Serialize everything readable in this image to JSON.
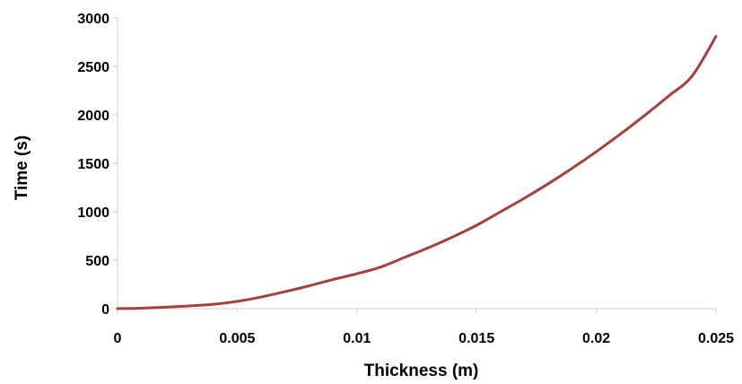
{
  "chart_data": {
    "type": "line",
    "title": "",
    "xlabel": "Thickness (m)",
    "ylabel": "Time (s)",
    "xlim": [
      0,
      0.025
    ],
    "ylim": [
      0,
      3000
    ],
    "x_ticks": [
      "0",
      "0.005",
      "0.01",
      "0.015",
      "0.02",
      "0.025"
    ],
    "y_ticks": [
      "0",
      "500",
      "1000",
      "1500",
      "2000",
      "2500",
      "3000"
    ],
    "grid": false,
    "legend": "none",
    "series": [
      {
        "color": "#a5403c",
        "x": [
          0,
          0.001,
          0.002,
          0.003,
          0.004,
          0.005,
          0.006,
          0.007,
          0.008,
          0.009,
          0.01,
          0.011,
          0.012,
          0.013,
          0.014,
          0.015,
          0.016,
          0.017,
          0.018,
          0.019,
          0.02,
          0.021,
          0.022,
          0.023,
          0.024,
          0.025
        ],
        "y": [
          0,
          5,
          15,
          28,
          45,
          75,
          120,
          175,
          235,
          300,
          360,
          430,
          530,
          630,
          740,
          860,
          1000,
          1140,
          1290,
          1450,
          1620,
          1800,
          1990,
          2190,
          2400,
          2810
        ]
      }
    ]
  }
}
